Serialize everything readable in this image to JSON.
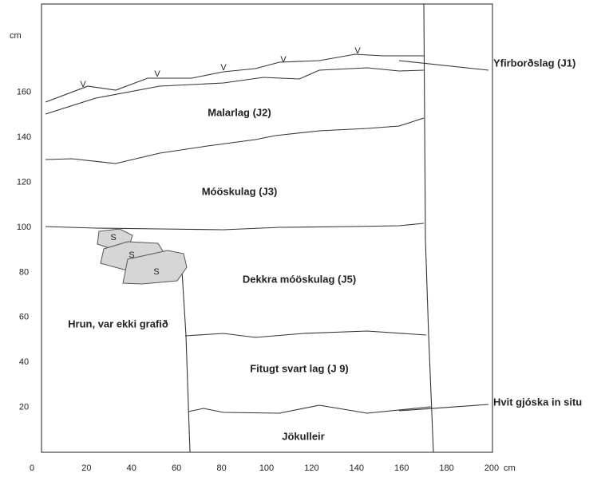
{
  "y_axis": {
    "unit": "cm",
    "ticks": [
      160,
      140,
      120,
      100,
      80,
      60,
      40,
      20
    ]
  },
  "x_axis": {
    "unit": "cm",
    "ticks": [
      0,
      20,
      40,
      60,
      80,
      100,
      120,
      140,
      160,
      180,
      200
    ]
  },
  "layers": [
    "Malarlag (J2)",
    "Móöskulag (J3)",
    "Dekkra móöskulag (J5)",
    "Fitugt svart lag (J 9)",
    "Jökulleir"
  ],
  "callouts": [
    "Yfirborðslag (J1)",
    "Hvit gjóska in situ"
  ],
  "collapse_note": "Hrun, var ekki grafið",
  "stones": [
    "S",
    "S",
    "S"
  ],
  "surface_marks": [
    "V",
    "V",
    "V",
    "V",
    "V"
  ]
}
